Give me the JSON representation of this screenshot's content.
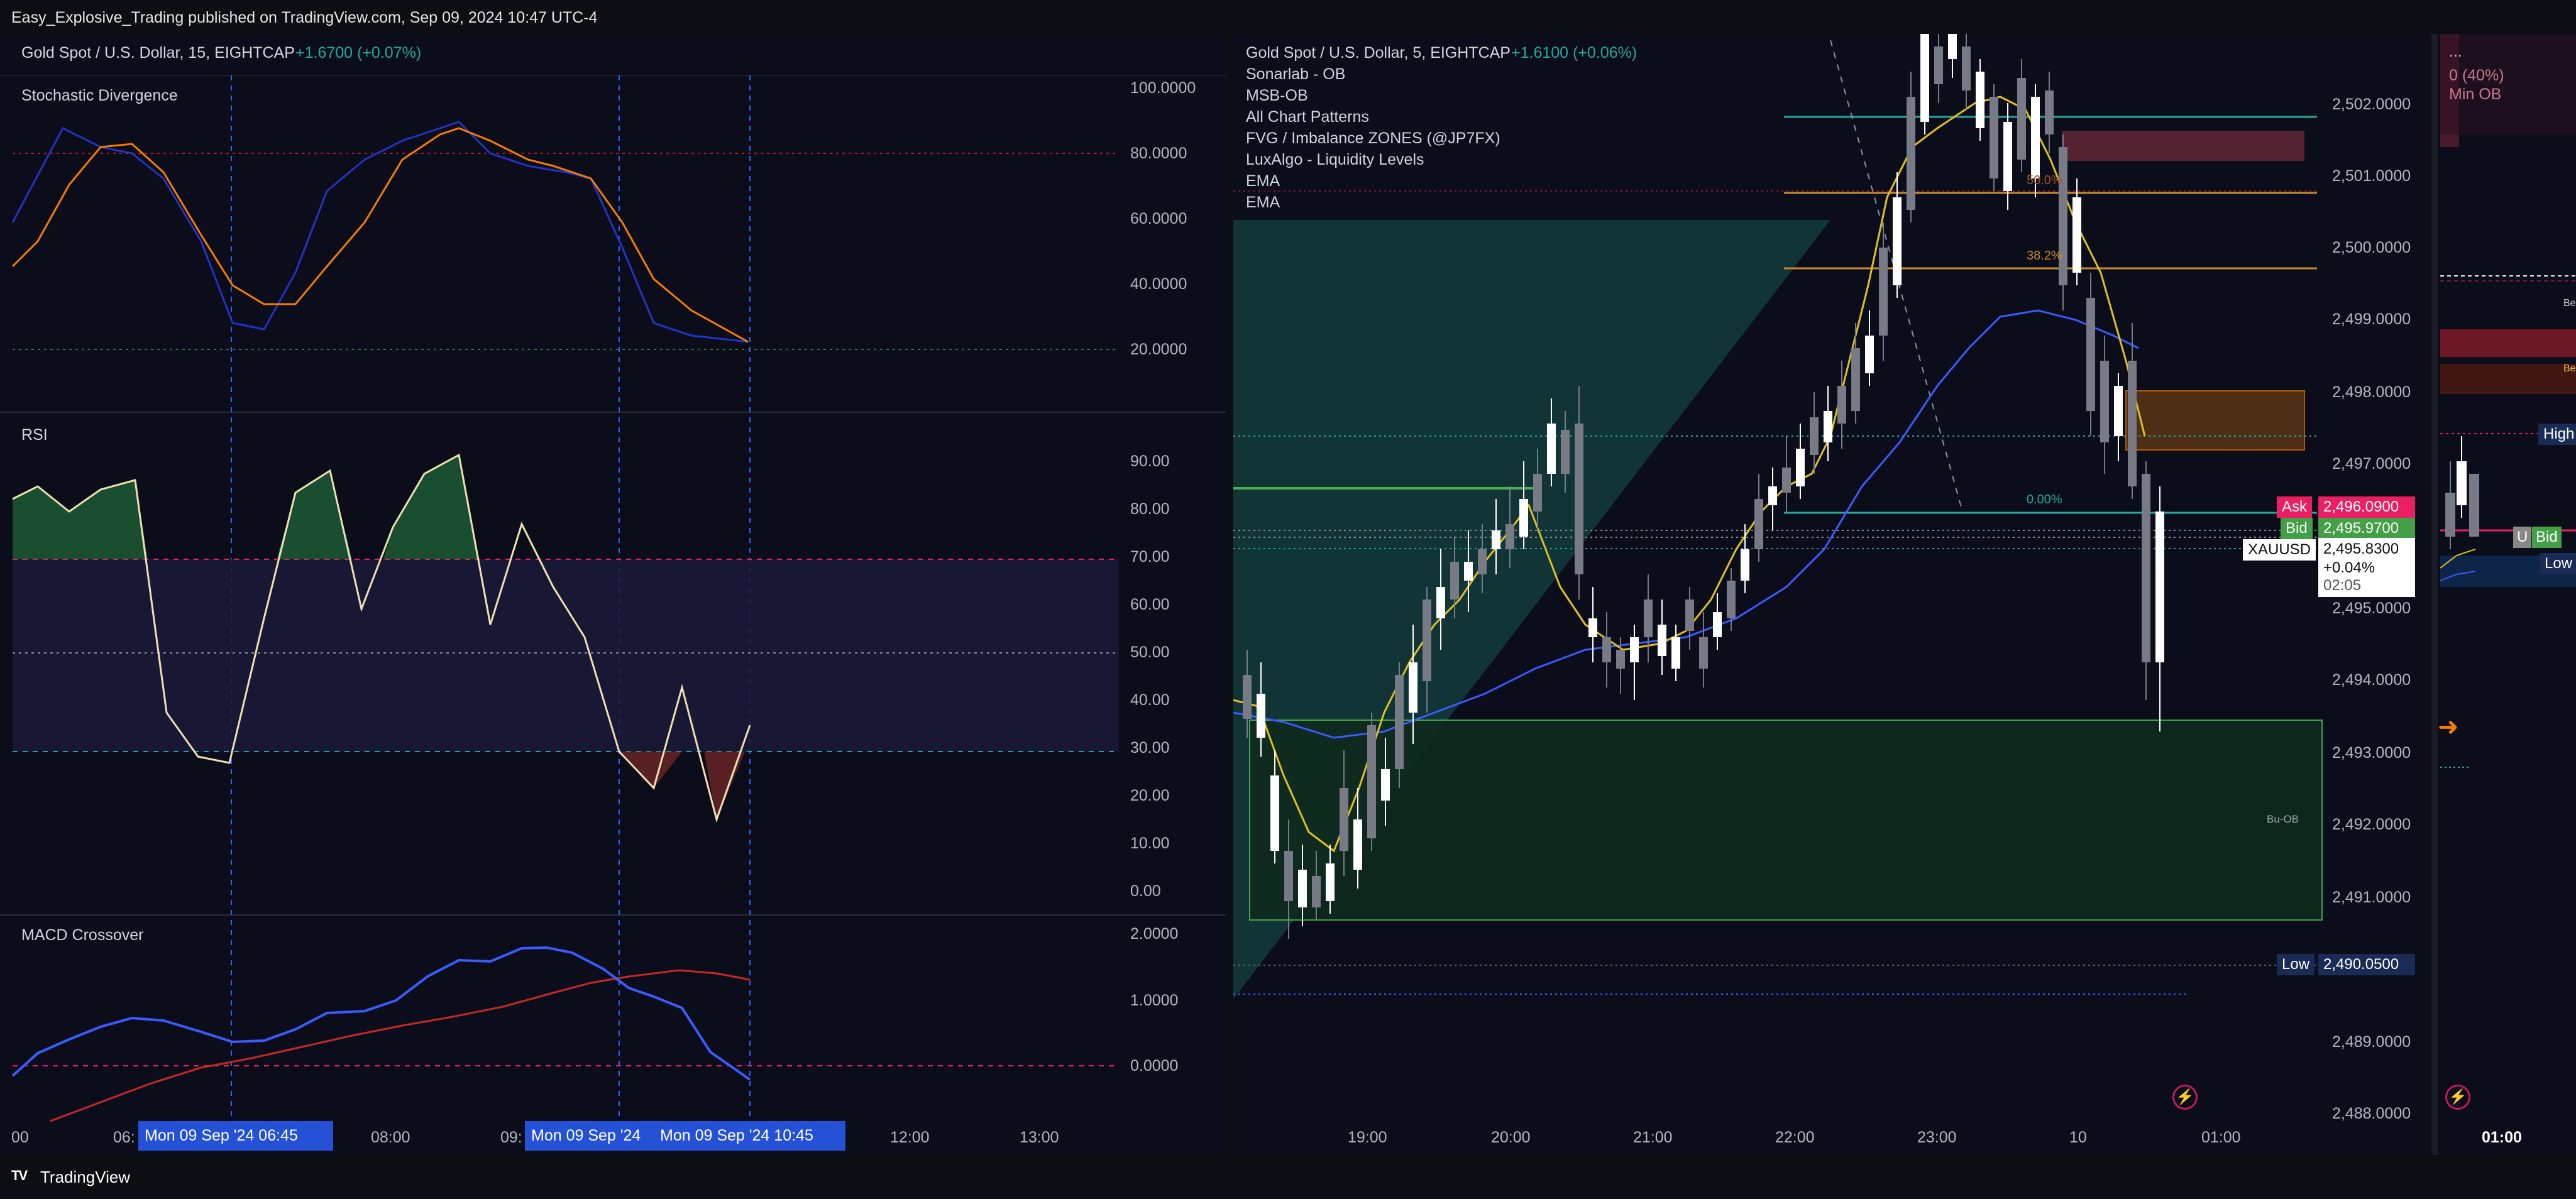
{
  "header": {
    "published": "Easy_Explosive_Trading published on TradingView.com, Sep 09, 2024 10:47 UTC-4"
  },
  "left": {
    "symbol": "Gold Spot / U.S. Dollar, 15, EIGHTCAP",
    "change": "+1.6700 (+0.07%)",
    "stoch": {
      "title": "Stochastic Divergence",
      "ticks": [
        "100.0000",
        "80.0000",
        "60.0000",
        "40.0000",
        "20.0000"
      ]
    },
    "rsi": {
      "title": "RSI",
      "ticks": [
        "90.00",
        "80.00",
        "70.00",
        "60.00",
        "50.00",
        "40.00",
        "30.00",
        "20.00",
        "10.00",
        "0.00"
      ]
    },
    "macd": {
      "title": "MACD Crossover",
      "ticks": [
        "2.0000",
        "1.0000",
        "0.0000"
      ]
    },
    "time_labels": [
      "00",
      "06:",
      "08:00",
      "09:",
      "12:00",
      "13:00"
    ],
    "time_highlights": [
      "Mon 09 Sep '24   06:45",
      "Mon 09 Sep '24",
      "Mon 09 Sep '24   10:45"
    ]
  },
  "right": {
    "symbol": "Gold Spot / U.S. Dollar, 5, EIGHTCAP",
    "change": "+1.6100 (+0.06%)",
    "indicators": [
      "Sonarlab - OB",
      "MSB-OB",
      "All Chart Patterns",
      "FVG / Imbalance ZONES (@JP7FX)",
      "LuxAlgo - Liquidity Levels",
      "EMA",
      "EMA"
    ],
    "price_ticks": [
      "2,502.0000",
      "2,501.0000",
      "2,500.0000",
      "2,499.0000",
      "2,498.0000",
      "2,497.0000",
      "2,495.0000",
      "2,494.0000",
      "2,493.0000",
      "2,492.0000",
      "2,491.0000",
      "2,489.0000",
      "2,488.0000"
    ],
    "time_labels": [
      "19:00",
      "20:00",
      "21:00",
      "22:00",
      "23:00",
      "10",
      "01:00"
    ],
    "fib_labels": [
      "50.0%",
      "38.2%",
      "0.00%"
    ],
    "ob_label": "Bu-OB",
    "ask": {
      "label": "Ask",
      "value": "2,496.0900"
    },
    "bid": {
      "label": "Bid",
      "value": "2,495.9700"
    },
    "last": {
      "symbol": "XAUUSD",
      "value": "2,495.8300",
      "change": "+0.04%",
      "countdown": "02:05"
    },
    "low": {
      "label": "Low",
      "value": "2,490.0500"
    }
  },
  "far": {
    "dots": "...",
    "pct": "0 (40%)",
    "min_ob": "Min OB",
    "labels": [
      "Be-",
      "Be-"
    ],
    "high": "High",
    "u": "U",
    "bid": "Bid",
    "low": "Low",
    "time": "01:00"
  },
  "footer": {
    "brand": "TradingView"
  },
  "colors": {
    "bg": "#0b0e1a",
    "blue": "#2f3fd6",
    "orange": "#f57c00",
    "green": "#26a69a",
    "red": "#e91e63"
  }
}
